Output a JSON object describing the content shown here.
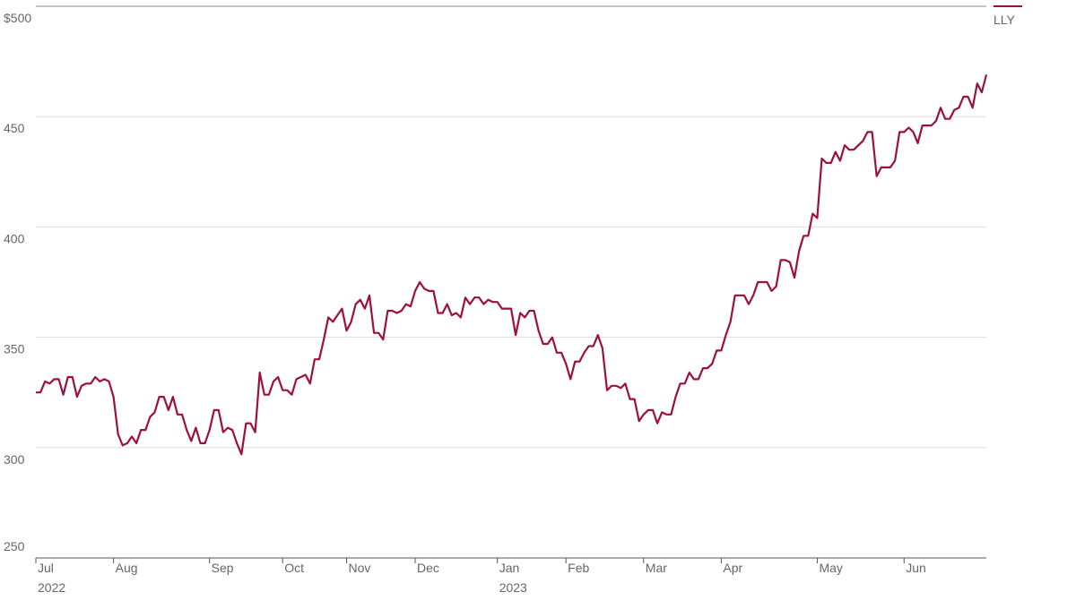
{
  "chart_data": {
    "type": "line",
    "xticks": [
      {
        "value": 0,
        "label": "Jul"
      },
      {
        "value": 17,
        "label": "Aug"
      },
      {
        "value": 38,
        "label": "Sep"
      },
      {
        "value": 54,
        "label": "Oct"
      },
      {
        "value": 68,
        "label": "Nov"
      },
      {
        "value": 83,
        "label": "Dec"
      },
      {
        "value": 101,
        "label": "Jan"
      },
      {
        "value": 116,
        "label": "Feb"
      },
      {
        "value": 133,
        "label": "Mar"
      },
      {
        "value": 150,
        "label": "Apr"
      },
      {
        "value": 171,
        "label": "May"
      },
      {
        "value": 190,
        "label": "Jun"
      }
    ],
    "xtick_years": [
      {
        "value": 0,
        "label": "2022"
      },
      {
        "value": 101,
        "label": "2023"
      }
    ],
    "xlim": [
      0,
      208
    ],
    "ylim": [
      250,
      500
    ],
    "yticks": [
      250,
      300,
      350,
      400,
      450,
      {
        "value": 500,
        "label": "$500"
      }
    ],
    "grid": true,
    "legend": "top-right",
    "series": [
      {
        "name": "LLY",
        "color": "#9e0f3f",
        "values": [
          325,
          325,
          330,
          329,
          331,
          331,
          324,
          332,
          332,
          323,
          328,
          329,
          329,
          332,
          330,
          331,
          330,
          323,
          306,
          301,
          302,
          305,
          302,
          308,
          308,
          314,
          316,
          323,
          323,
          317,
          323,
          315,
          315,
          308,
          303,
          309,
          302,
          302,
          308,
          317,
          317,
          307,
          309,
          308,
          302,
          297,
          311,
          311,
          307,
          334,
          324,
          324,
          330,
          332,
          326,
          326,
          324,
          331,
          332,
          333,
          329,
          340,
          340,
          349,
          359,
          357,
          360,
          363,
          353,
          357,
          365,
          367,
          363,
          369,
          352,
          352,
          349,
          362,
          362,
          361,
          362,
          365,
          364,
          371,
          375,
          372,
          371,
          371,
          361,
          361,
          365,
          360,
          361,
          359,
          368,
          365,
          368,
          368,
          365,
          367,
          366,
          366,
          363,
          363,
          363,
          351,
          361,
          359,
          362,
          362,
          353,
          347,
          347,
          350,
          343,
          343,
          338,
          331,
          339,
          339,
          343,
          346,
          346,
          351,
          345,
          326,
          328,
          328,
          327,
          329,
          322,
          322,
          312,
          315,
          317,
          317,
          311,
          316,
          315,
          315,
          323,
          329,
          329,
          334,
          331,
          331,
          336,
          336,
          338,
          344,
          344,
          351,
          357,
          369,
          369,
          369,
          365,
          369,
          375,
          375,
          375,
          371,
          373,
          385,
          385,
          384,
          377,
          389,
          396,
          396,
          406,
          404,
          431,
          429,
          429,
          434,
          430,
          437,
          435,
          435,
          437,
          439,
          443,
          443,
          423,
          427,
          427,
          427,
          430,
          443,
          443,
          445,
          443,
          438,
          446,
          446,
          446,
          448,
          454,
          449,
          449,
          453,
          454,
          459,
          459,
          454,
          465,
          461,
          469
        ]
      }
    ]
  }
}
